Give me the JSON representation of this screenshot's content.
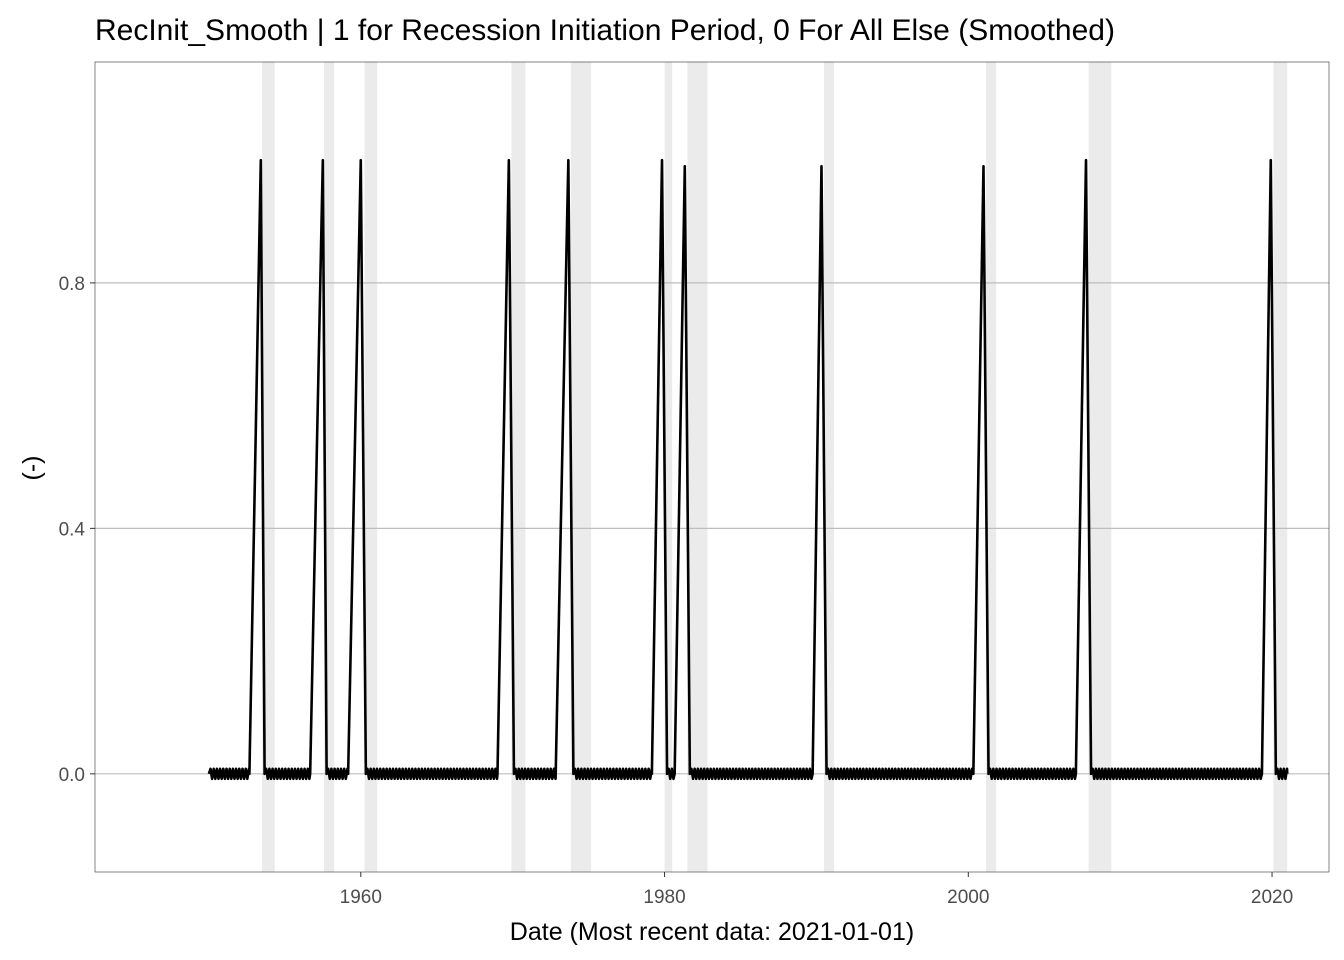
{
  "chart_data": {
    "type": "line",
    "title": "RecInit_Smooth | 1 for Recession Initiation Period, 0 For All Else (Smoothed)",
    "xlabel": "Date (Most recent data: 2021-01-01)",
    "ylabel": "(-)",
    "xlim": [
      "1942-07-01",
      "2023-10-01"
    ],
    "ylim": [
      -0.16,
      1.16
    ],
    "x_ticks": [
      {
        "value": "1960-01-01",
        "label": "1960"
      },
      {
        "value": "1980-01-01",
        "label": "1980"
      },
      {
        "value": "2000-01-01",
        "label": "2000"
      },
      {
        "value": "2020-01-01",
        "label": "2020"
      }
    ],
    "y_ticks": [
      {
        "value": 0.0,
        "label": "0.0"
      },
      {
        "value": 0.4,
        "label": "0.4"
      },
      {
        "value": 0.8,
        "label": "0.8"
      }
    ],
    "grid": "horizontal",
    "recession_shading": [
      [
        "1953-07-01",
        "1954-05-01"
      ],
      [
        "1957-08-01",
        "1958-04-01"
      ],
      [
        "1960-04-01",
        "1961-02-01"
      ],
      [
        "1969-12-01",
        "1970-11-01"
      ],
      [
        "1973-11-01",
        "1975-03-01"
      ],
      [
        "1980-01-01",
        "1980-07-01"
      ],
      [
        "1981-07-01",
        "1982-11-01"
      ],
      [
        "1990-07-01",
        "1991-03-01"
      ],
      [
        "2001-03-01",
        "2001-11-01"
      ],
      [
        "2007-12-01",
        "2009-06-01"
      ],
      [
        "2020-02-01",
        "2021-01-01"
      ]
    ],
    "series": [
      {
        "x": [
          "1950-01-01",
          "1952-09-01",
          "1953-06-01",
          "1953-09-01",
          "1956-09-01",
          "1957-07-01",
          "1957-10-01",
          "1959-03-01",
          "1960-01-01",
          "1960-05-01",
          "1969-01-01",
          "1969-10-01",
          "1970-02-01",
          "1972-11-01",
          "1973-09-01",
          "1974-01-01",
          "1979-03-01",
          "1979-11-01",
          "1980-03-01",
          "1980-09-01",
          "1981-05-01",
          "1981-09-01",
          "1989-10-01",
          "1990-05-01",
          "1990-09-01",
          "2000-05-01",
          "2001-01-01",
          "2001-05-01",
          "2007-02-01",
          "2007-10-01",
          "2008-02-01",
          "2019-05-01",
          "2019-12-01",
          "2020-04-01",
          "2021-01-01"
        ],
        "y": [
          0,
          0,
          1,
          0,
          0,
          1,
          0,
          0,
          1,
          0,
          0,
          1,
          0,
          0,
          1,
          0,
          0,
          1,
          0,
          0,
          0.99,
          0,
          0,
          0.99,
          0,
          0,
          0.99,
          0,
          0,
          1,
          0,
          0,
          1,
          0,
          0
        ]
      }
    ]
  }
}
